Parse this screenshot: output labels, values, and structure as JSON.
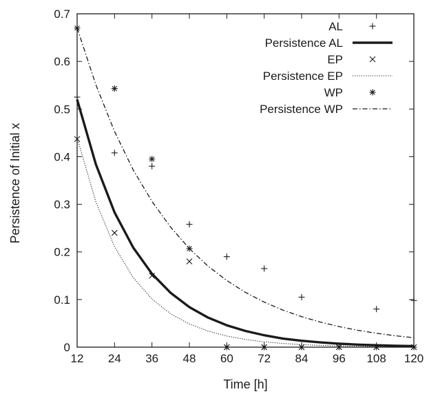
{
  "chart_data": {
    "type": "scatter",
    "title": "",
    "xlabel": "Time [h]",
    "ylabel": "Persistence of Initial x",
    "xlim": [
      12,
      120
    ],
    "ylim": [
      0,
      0.7
    ],
    "xticks": [
      12,
      24,
      36,
      48,
      60,
      72,
      84,
      96,
      108,
      120
    ],
    "yticks": [
      0,
      0.1,
      0.2,
      0.3,
      0.4,
      0.5,
      0.6,
      0.7
    ],
    "xtick_labels": [
      "12",
      "24",
      "36",
      "48",
      "60",
      "72",
      "84",
      "96",
      "108",
      "120"
    ],
    "ytick_labels": [
      "0",
      "0.1",
      "0.2",
      "0.3",
      "0.4",
      "0.5",
      "0.6",
      "0.7"
    ],
    "grid": false,
    "legend_position": "top-right",
    "series": [
      {
        "name": "AL",
        "kind": "points",
        "marker": "plus",
        "x": [
          12,
          24,
          36,
          48,
          60,
          72,
          84,
          108,
          120
        ],
        "y": [
          0.525,
          0.408,
          0.38,
          0.258,
          0.19,
          0.165,
          0.105,
          0.08,
          0.098
        ]
      },
      {
        "name": "Persistence AL",
        "kind": "curve",
        "style": "solid-thick",
        "x": [
          12,
          18,
          24,
          30,
          36,
          42,
          48,
          54,
          60,
          66,
          72,
          78,
          84,
          90,
          96,
          102,
          108,
          114,
          120
        ],
        "y": [
          0.52,
          0.384,
          0.283,
          0.209,
          0.154,
          0.114,
          0.084,
          0.062,
          0.046,
          0.034,
          0.025,
          0.018,
          0.0135,
          0.01,
          0.0074,
          0.0054,
          0.004,
          0.003,
          0.0022
        ]
      },
      {
        "name": "EP",
        "kind": "points",
        "marker": "cross",
        "x": [
          12,
          24,
          36,
          48,
          60,
          72,
          84,
          96,
          108,
          120
        ],
        "y": [
          0.437,
          0.24,
          0.15,
          0.18,
          0.0,
          0.0,
          0.0,
          0.0,
          0.0,
          0.0
        ]
      },
      {
        "name": "Persistence EP",
        "kind": "curve",
        "style": "dotted",
        "x": [
          12,
          18,
          24,
          30,
          36,
          42,
          48,
          54,
          60,
          66,
          72,
          78,
          84,
          90,
          96,
          102,
          108,
          114,
          120
        ],
        "y": [
          0.44,
          0.305,
          0.211,
          0.146,
          0.101,
          0.07,
          0.0487,
          0.0337,
          0.0234,
          0.0162,
          0.0112,
          0.0078,
          0.0054,
          0.0037,
          0.0026,
          0.0018,
          0.0012,
          0.0009,
          0.0006
        ]
      },
      {
        "name": "WP",
        "kind": "points",
        "marker": "star",
        "x": [
          12,
          24,
          36,
          48,
          60,
          72,
          84,
          96,
          108,
          120
        ],
        "y": [
          0.67,
          0.543,
          0.395,
          0.207,
          0.0,
          0.0,
          0.0,
          0.0,
          0.0,
          0.0
        ]
      },
      {
        "name": "Persistence WP",
        "kind": "curve",
        "style": "dash-dot",
        "x": [
          12,
          18,
          24,
          30,
          36,
          42,
          48,
          54,
          60,
          66,
          72,
          78,
          84,
          90,
          96,
          102,
          108,
          114,
          120
        ],
        "y": [
          0.67,
          0.551,
          0.453,
          0.372,
          0.306,
          0.252,
          0.207,
          0.17,
          0.14,
          0.115,
          0.0946,
          0.0778,
          0.064,
          0.0526,
          0.0432,
          0.0355,
          0.0292,
          0.024,
          0.0198
        ]
      }
    ]
  }
}
